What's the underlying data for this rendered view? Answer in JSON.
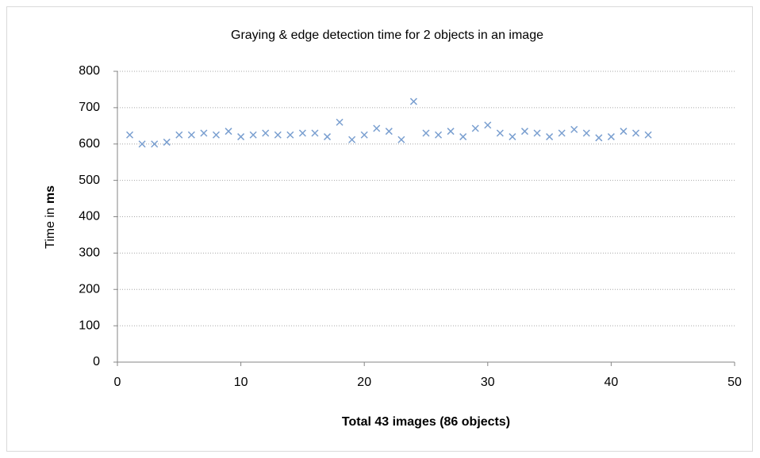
{
  "chart_data": {
    "type": "scatter",
    "title": "Graying & edge detection  time for 2 objects in an image",
    "x_label": "Total 43 images (86 objects)",
    "y_label": [
      "Time in",
      "ms"
    ],
    "series": [
      {
        "color": "#7a9fd0",
        "x": [
          1,
          2,
          3,
          4,
          5,
          6,
          7,
          8,
          9,
          10,
          11,
          12,
          13,
          14,
          15,
          16,
          17,
          18,
          19,
          20,
          21,
          22,
          23,
          24,
          25,
          26,
          27,
          28,
          29,
          30,
          31,
          32,
          33,
          34,
          35,
          36,
          37,
          38,
          39,
          40,
          41,
          42,
          43
        ],
        "values": [
          625,
          600,
          600,
          605,
          625,
          625,
          630,
          625,
          635,
          620,
          625,
          630,
          625,
          625,
          630,
          630,
          620,
          660,
          612,
          625,
          643,
          635,
          612,
          717,
          630,
          625,
          635,
          620,
          643,
          652,
          630,
          620,
          635,
          630,
          620,
          630,
          640,
          630,
          617,
          620,
          635,
          630,
          625
        ]
      }
    ],
    "xlim": [
      0,
      50
    ],
    "xticks": [
      0,
      10,
      20,
      30,
      40,
      50
    ],
    "ylim": [
      0,
      800
    ],
    "yticks": [
      0,
      100,
      200,
      300,
      400,
      500,
      600,
      700,
      800
    ],
    "grid": true
  }
}
